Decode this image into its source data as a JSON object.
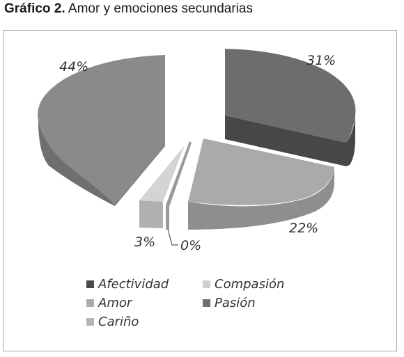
{
  "title": {
    "bold": "Gráfico 2.",
    "rest": "Amor y emociones secundarias"
  },
  "chart_data": {
    "type": "pie",
    "title": "Gráfico 2. Amor y emociones secundarias",
    "categories": [
      "Afectividad",
      "Compasión",
      "Amor",
      "Pasión",
      "Cariño"
    ],
    "values": [
      31,
      0,
      22,
      3,
      44
    ],
    "value_labels": [
      "31%",
      "0%",
      "22%",
      "3%",
      "44%"
    ],
    "legend_position": "bottom",
    "three_d": true,
    "exploded": true
  },
  "legend": [
    {
      "label": "Afectividad",
      "color": "#4a4a4a"
    },
    {
      "label": "Compasión",
      "color": "#cfcfcf"
    },
    {
      "label": "Amor",
      "color": "#ababab"
    },
    {
      "label": "Pasión",
      "color": "#6f6f6f"
    },
    {
      "label": "Cariño",
      "color": "#b5b5b5"
    }
  ],
  "colors": {
    "afectividad_top": "#6d6d6d",
    "afectividad_side": "#474747",
    "amor_top": "#aaaaaa",
    "amor_side": "#8e8e8e",
    "cariño_top": "#d4d4d4",
    "cariño_side": "#b0b0b0",
    "compasion_side": "#9a9a9a",
    "pasion_top": "#8a8a8a",
    "pasion_side": "#6f6f6f"
  }
}
